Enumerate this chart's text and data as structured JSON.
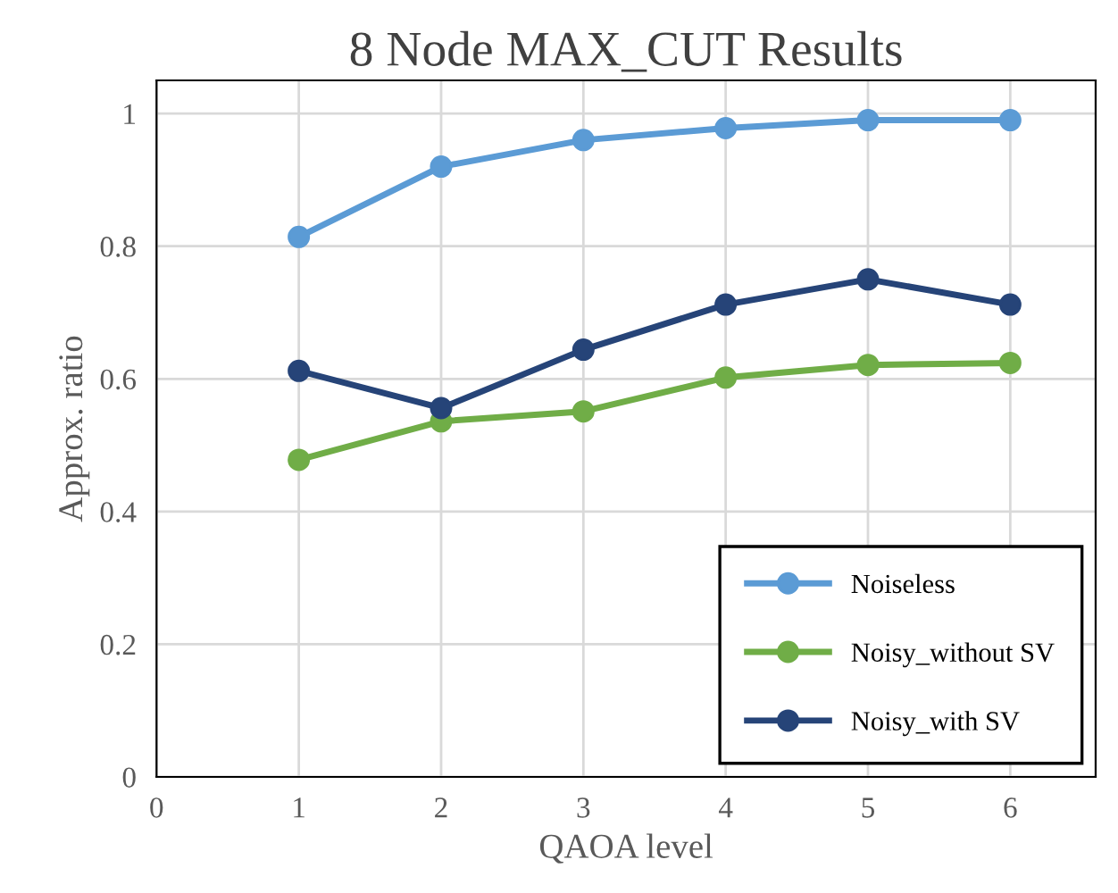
{
  "chart_data": {
    "type": "line",
    "title": "8 Node MAX_CUT Results",
    "xlabel": "QAOA level",
    "ylabel": "Approx. ratio",
    "x": [
      1,
      2,
      3,
      4,
      5,
      6
    ],
    "series": [
      {
        "name": "Noiseless",
        "color": "#5b9bd5",
        "values": [
          0.814,
          0.92,
          0.96,
          0.978,
          0.99,
          0.99
        ]
      },
      {
        "name": "Noisy_without SV",
        "color": "#70ad47",
        "values": [
          0.478,
          0.536,
          0.551,
          0.602,
          0.621,
          0.624
        ]
      },
      {
        "name": "Noisy_with SV",
        "color": "#264478",
        "values": [
          0.612,
          0.556,
          0.644,
          0.712,
          0.75,
          0.712
        ]
      }
    ],
    "xlim": [
      0,
      6.6
    ],
    "ylim": [
      0,
      1.05
    ],
    "xticks": [
      0,
      1,
      2,
      3,
      4,
      5,
      6
    ],
    "yticks": [
      0,
      0.2,
      0.4,
      0.6,
      0.8,
      1
    ],
    "grid": true,
    "legend": "bottom right",
    "marker": "circle",
    "line_style": "solid"
  }
}
